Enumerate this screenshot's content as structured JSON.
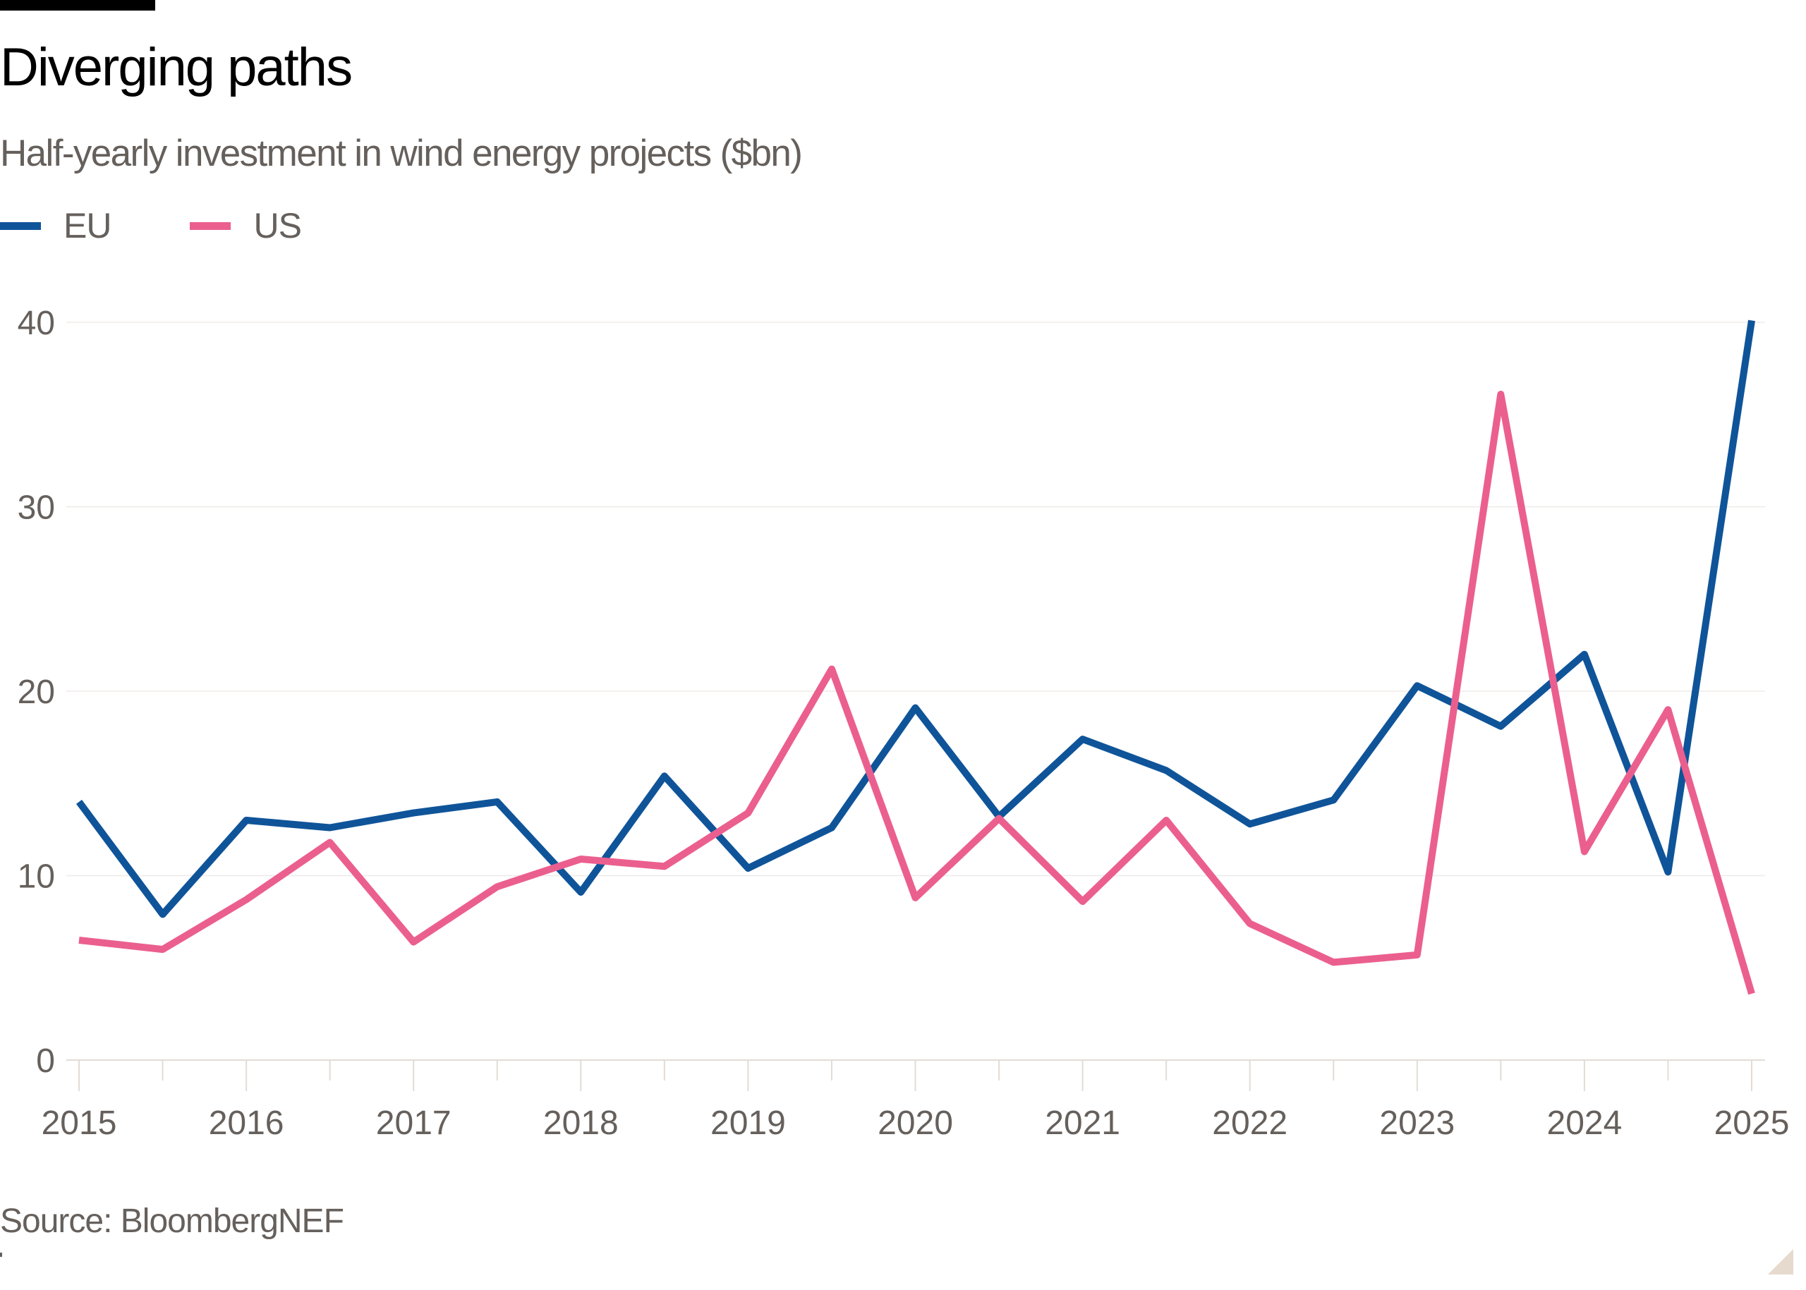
{
  "header": {
    "title": "Diverging paths",
    "subtitle": "Half-yearly investment in wind energy projects ($bn)"
  },
  "legend": [
    {
      "label": "EU",
      "color": "#0f5499"
    },
    {
      "label": "US",
      "color": "#eb5f8f"
    }
  ],
  "footer": {
    "source": "Source: BloombergNEF"
  },
  "chart_data": {
    "type": "line",
    "title": "Diverging paths",
    "subtitle": "Half-yearly investment in wind energy projects ($bn)",
    "xlabel": "",
    "ylabel": "",
    "x": [
      2015.0,
      2015.5,
      2016.0,
      2016.5,
      2017.0,
      2017.5,
      2018.0,
      2018.5,
      2019.0,
      2019.5,
      2020.0,
      2020.5,
      2021.0,
      2021.5,
      2022.0,
      2022.5,
      2023.0,
      2023.5,
      2024.0,
      2024.5,
      2025.0
    ],
    "x_ticks": [
      "2015",
      "2016",
      "2017",
      "2018",
      "2019",
      "2020",
      "2021",
      "2022",
      "2023",
      "2024",
      "2025"
    ],
    "xlim": [
      2015,
      2025
    ],
    "ylim": [
      0,
      40
    ],
    "y_ticks": [
      "0",
      "10",
      "20",
      "30",
      "40"
    ],
    "grid": "horizontal",
    "legend_position": "top-left",
    "series": [
      {
        "name": "EU",
        "color": "#0f5499",
        "values": [
          14.0,
          7.9,
          13.0,
          12.6,
          13.4,
          14.0,
          9.1,
          15.4,
          10.4,
          12.6,
          19.1,
          13.2,
          17.4,
          15.7,
          12.8,
          14.1,
          20.3,
          18.1,
          22.0,
          10.2,
          40.1
        ]
      },
      {
        "name": "US",
        "color": "#eb5f8f",
        "values": [
          6.5,
          6.0,
          8.7,
          11.8,
          6.4,
          9.4,
          10.9,
          10.5,
          13.4,
          21.2,
          8.8,
          13.1,
          8.6,
          13.0,
          7.4,
          5.3,
          5.7,
          36.1,
          11.3,
          19.0,
          3.6
        ]
      }
    ],
    "source": "Source: BloombergNEF"
  }
}
